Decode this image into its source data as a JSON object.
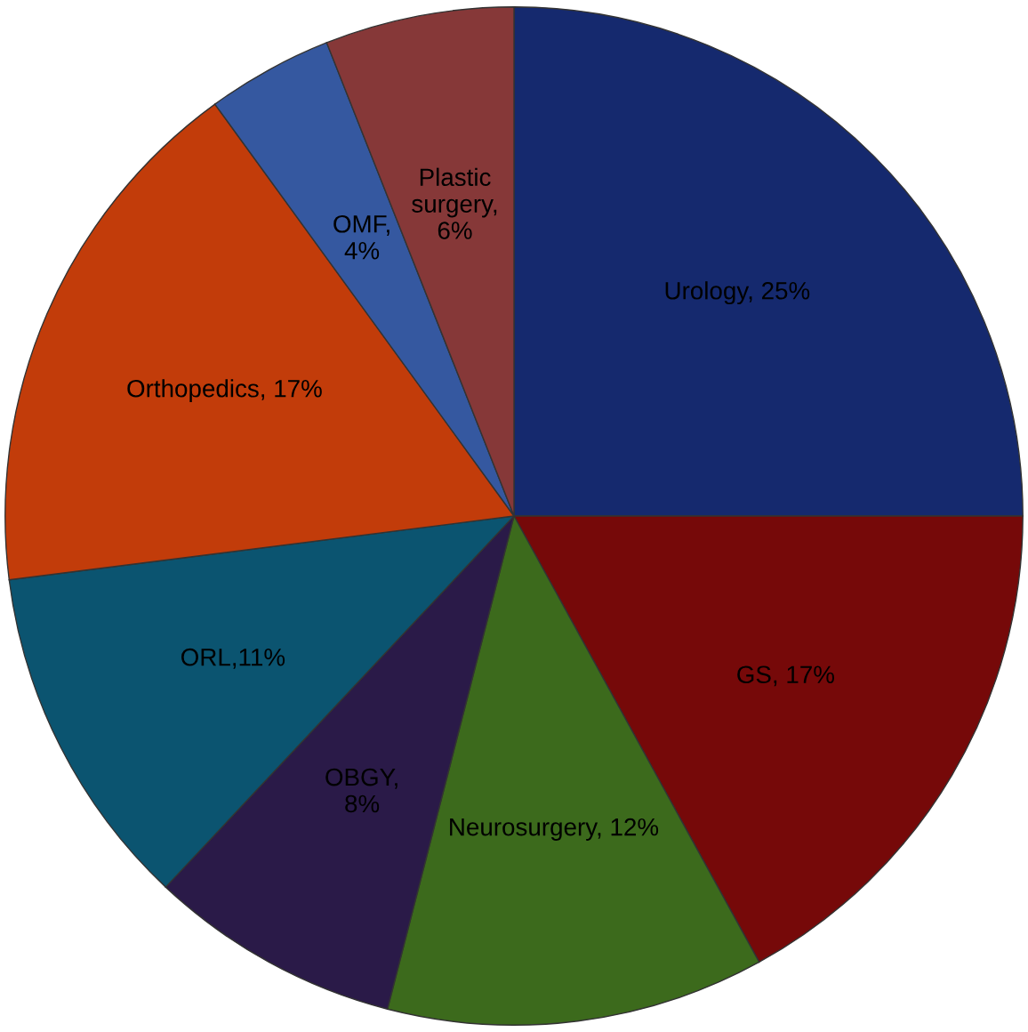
{
  "chart_data": {
    "type": "pie",
    "categories": [
      "Urology, 25%",
      "GS, 17%",
      "Neurosurgery, 12%",
      "OBGY,\n8%",
      "ORL,11%",
      "Orthopedics, 17%",
      "OMF,\n4%",
      "Plastic\nsurgery,\n6%"
    ],
    "values": [
      25,
      17,
      12,
      8,
      11,
      17,
      4,
      6
    ],
    "colors": [
      "#15296e",
      "#760909",
      "#3c6a1c",
      "#2a1a48",
      "#0b5470",
      "#c23c0a",
      "#3558a0",
      "#863838"
    ]
  }
}
